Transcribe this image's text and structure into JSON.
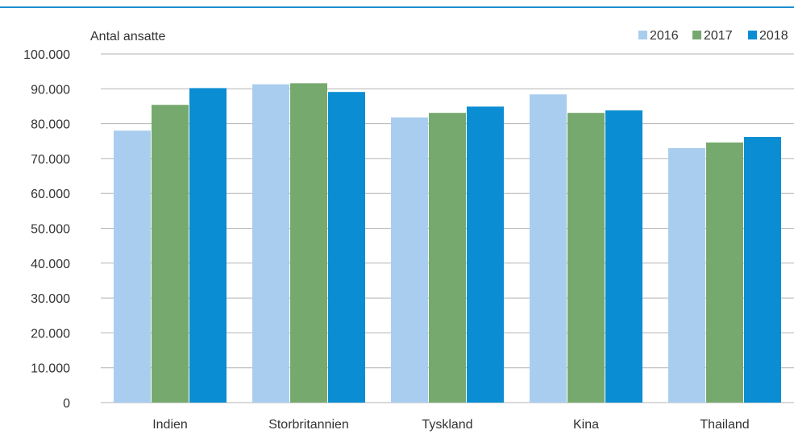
{
  "chart_data": {
    "type": "bar",
    "ylabel": "Antal ansatte",
    "categories": [
      "Indien",
      "Storbritannien",
      "Tyskland",
      "Kina",
      "Thailand"
    ],
    "series": [
      {
        "name": "2016",
        "color": "#a9cdee",
        "values": [
          78000,
          91300,
          81800,
          88400,
          73000
        ]
      },
      {
        "name": "2017",
        "color": "#76a96e",
        "values": [
          85400,
          91600,
          83100,
          83100,
          74600
        ]
      },
      {
        "name": "2018",
        "color": "#0a8dd2",
        "values": [
          90200,
          89100,
          84900,
          83800,
          76200
        ]
      }
    ],
    "ylim": [
      0,
      100000
    ],
    "yticks": [
      0,
      10000,
      20000,
      30000,
      40000,
      50000,
      60000,
      70000,
      80000,
      90000,
      100000
    ],
    "ytick_labels": [
      "0",
      "10.000",
      "20.000",
      "30.000",
      "40.000",
      "50.000",
      "60.000",
      "70.000",
      "80.000",
      "90.000",
      "100.000"
    ],
    "grid": true,
    "legend_position": "top-right",
    "gridline_color": "#b3b3b3",
    "top_rule_color": "#1b8fcf"
  }
}
